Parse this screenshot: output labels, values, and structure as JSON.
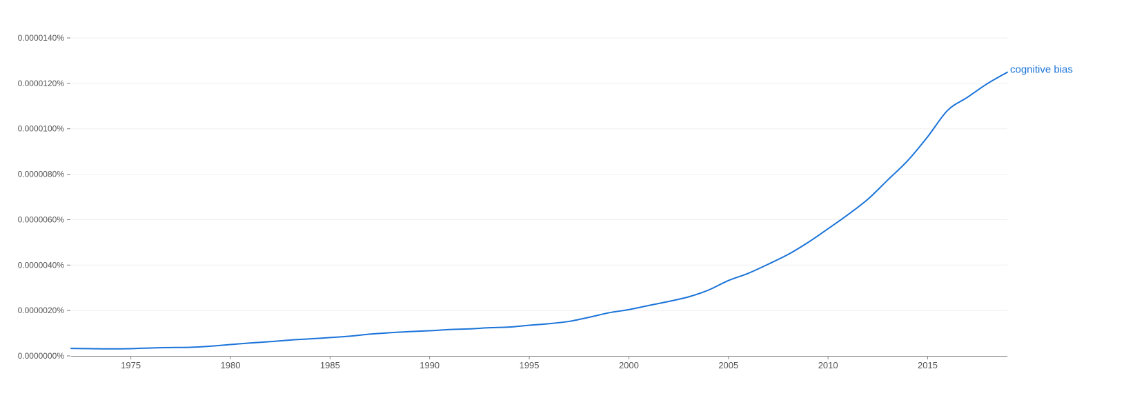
{
  "chart_data": {
    "type": "line",
    "title": "",
    "xlabel": "",
    "ylabel": "",
    "xlim": [
      1972,
      2019
    ],
    "ylim": [
      0,
      1.4e-05
    ],
    "y_ticks": [
      {
        "value": 0,
        "label": "0.0000000%"
      },
      {
        "value": 2e-06,
        "label": "0.0000020%"
      },
      {
        "value": 4e-06,
        "label": "0.0000040%"
      },
      {
        "value": 6e-06,
        "label": "0.0000060%"
      },
      {
        "value": 8e-06,
        "label": "0.0000080%"
      },
      {
        "value": 1e-05,
        "label": "0.0000100%"
      },
      {
        "value": 1.2e-05,
        "label": "0.0000120%"
      },
      {
        "value": 1.4e-05,
        "label": "0.0000140%"
      }
    ],
    "x_ticks": [
      {
        "value": 1975,
        "label": "1975"
      },
      {
        "value": 1980,
        "label": "1980"
      },
      {
        "value": 1985,
        "label": "1985"
      },
      {
        "value": 1990,
        "label": "1990"
      },
      {
        "value": 1995,
        "label": "1995"
      },
      {
        "value": 2000,
        "label": "2000"
      },
      {
        "value": 2005,
        "label": "2005"
      },
      {
        "value": 2010,
        "label": "2010"
      },
      {
        "value": 2015,
        "label": "2015"
      }
    ],
    "grid": true,
    "series": [
      {
        "name": "cognitive bias",
        "color": "#1a73d9",
        "x": [
          1972,
          1973,
          1974,
          1975,
          1976,
          1977,
          1978,
          1979,
          1980,
          1981,
          1982,
          1983,
          1984,
          1985,
          1986,
          1987,
          1988,
          1989,
          1990,
          1991,
          1992,
          1993,
          1994,
          1995,
          1996,
          1997,
          1998,
          1999,
          2000,
          2001,
          2002,
          2003,
          2004,
          2005,
          2006,
          2007,
          2008,
          2009,
          2010,
          2011,
          2012,
          2013,
          2014,
          2015,
          2016,
          2017,
          2018,
          2019
        ],
        "y": [
          3.3e-07,
          3.2e-07,
          3.1e-07,
          3.2e-07,
          3.5e-07,
          3.7e-07,
          3.8e-07,
          4.3e-07,
          5e-07,
          5.7e-07,
          6.3e-07,
          7e-07,
          7.5e-07,
          8.1e-07,
          8.7e-07,
          9.6e-07,
          1.02e-06,
          1.07e-06,
          1.11e-06,
          1.16e-06,
          1.19e-06,
          1.24e-06,
          1.27e-06,
          1.35e-06,
          1.42e-06,
          1.52e-06,
          1.7e-06,
          1.9e-06,
          2.04e-06,
          2.22e-06,
          2.4e-06,
          2.6e-06,
          2.9e-06,
          3.32e-06,
          3.64e-06,
          4.04e-06,
          4.47e-06,
          5e-06,
          5.6e-06,
          6.22e-06,
          6.9e-06,
          7.75e-06,
          8.6e-06,
          9.65e-06,
          1.081e-05,
          1.139e-05,
          1.199e-05,
          1.249e-05
        ]
      }
    ]
  }
}
